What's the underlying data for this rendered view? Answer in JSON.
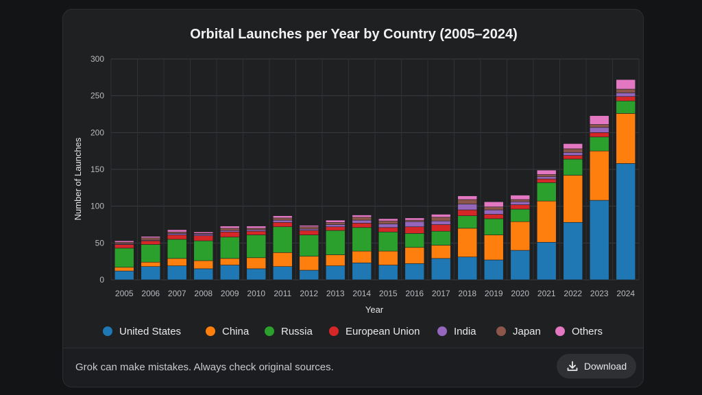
{
  "chart_data": {
    "type": "bar",
    "stacked": true,
    "title": "Orbital Launches per Year by Country (2005–2024)",
    "xlabel": "Year",
    "ylabel": "Number of Launches",
    "ylim": [
      0,
      300
    ],
    "yticks": [
      0,
      50,
      100,
      150,
      200,
      250,
      300
    ],
    "grid": true,
    "legend_position": "bottom",
    "categories": [
      "2005",
      "2006",
      "2007",
      "2008",
      "2009",
      "2010",
      "2011",
      "2012",
      "2013",
      "2014",
      "2015",
      "2016",
      "2017",
      "2018",
      "2019",
      "2020",
      "2021",
      "2022",
      "2023",
      "2024"
    ],
    "series": [
      {
        "name": "United States",
        "color": "#1f77b4",
        "values": [
          12,
          18,
          19,
          15,
          20,
          15,
          18,
          13,
          19,
          23,
          20,
          22,
          29,
          31,
          27,
          40,
          51,
          78,
          108,
          158
        ]
      },
      {
        "name": "China",
        "color": "#ff7f0e",
        "values": [
          5,
          6,
          10,
          11,
          9,
          15,
          19,
          19,
          15,
          16,
          19,
          22,
          18,
          39,
          34,
          39,
          56,
          64,
          67,
          68
        ]
      },
      {
        "name": "Russia",
        "color": "#2ca02c",
        "values": [
          26,
          24,
          26,
          27,
          29,
          31,
          35,
          29,
          33,
          32,
          26,
          19,
          19,
          17,
          22,
          17,
          25,
          22,
          19,
          17
        ]
      },
      {
        "name": "European Union",
        "color": "#d62728",
        "values": [
          5,
          5,
          6,
          7,
          7,
          5,
          6,
          6,
          5,
          6,
          6,
          9,
          9,
          8,
          6,
          6,
          5,
          5,
          6,
          6
        ]
      },
      {
        "name": "India",
        "color": "#9467bd",
        "values": [
          1,
          1,
          2,
          2,
          2,
          2,
          3,
          2,
          3,
          4,
          5,
          7,
          5,
          8,
          6,
          4,
          3,
          4,
          7,
          5
        ]
      },
      {
        "name": "Japan",
        "color": "#8c564b",
        "values": [
          2,
          3,
          2,
          1,
          3,
          2,
          3,
          3,
          3,
          4,
          4,
          2,
          5,
          6,
          4,
          3,
          3,
          5,
          4,
          5
        ]
      },
      {
        "name": "Others",
        "color": "#e377c2",
        "values": [
          2,
          2,
          3,
          2,
          3,
          3,
          3,
          2,
          3,
          3,
          3,
          3,
          4,
          5,
          7,
          6,
          6,
          7,
          12,
          13
        ]
      }
    ]
  },
  "footer": {
    "disclaimer": "Grok can make mistakes. Always check original sources.",
    "download_label": "Download"
  },
  "icons": {
    "download": "download-icon"
  }
}
